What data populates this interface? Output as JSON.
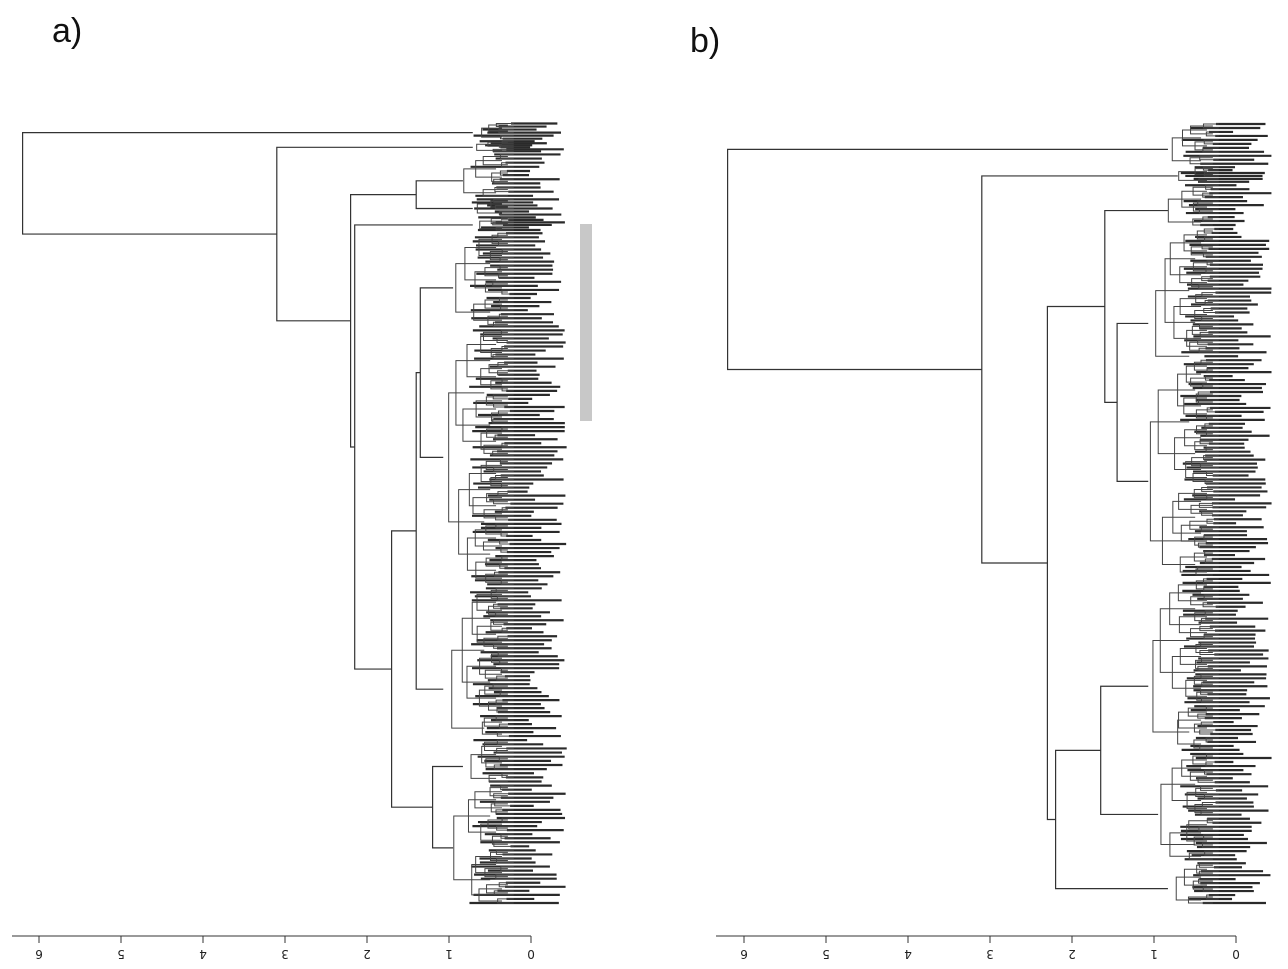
{
  "panels": [
    {
      "label": "a)",
      "axis": {
        "ticks": [
          0,
          1,
          2,
          3,
          4,
          5,
          6
        ],
        "tick_labels": [
          "0",
          "1",
          "2",
          "3",
          "4",
          "5",
          "6"
        ]
      },
      "root_height": 6.2,
      "highlight_bar_color": "#c8c8c8",
      "dendrogram": {
        "h": 6.2,
        "l": {
          "leaf": true,
          "w": 0.6
        },
        "r": {
          "h": 3.1,
          "l": {
            "leaf": true,
            "w": 0.4
          },
          "r": {
            "h": 2.2,
            "l": {
              "h": 1.4,
              "l": {
                "leaf": true,
                "w": 1.5
              },
              "r": {
                "leaf": true,
                "w": 0.6
              }
            },
            "r": {
              "h": 2.15,
              "l": {
                "leaf": true,
                "w": 0.5
              },
              "r": {
                "h": 1.7,
                "l": {
                  "h": 1.4,
                  "l": {
                    "h": 1.35,
                    "l": {
                      "leaf": true,
                      "w": 3.2
                    },
                    "r": {
                      "leaf": true,
                      "w": 8.5
                    }
                  },
                  "r": {
                    "leaf": true,
                    "w": 5.0
                  }
                },
                "r": {
                  "h": 1.2,
                  "l": {
                    "leaf": true,
                    "w": 1.5
                  },
                  "r": {
                    "leaf": true,
                    "w": 4.0
                  }
                }
              }
            }
          }
        }
      }
    },
    {
      "label": "b)",
      "axis": {
        "ticks": [
          0,
          1,
          2,
          3,
          4,
          5,
          6
        ],
        "tick_labels": [
          "0",
          "1",
          "2",
          "3",
          "4",
          "5",
          "6"
        ]
      },
      "root_height": 6.2,
      "dendrogram": {
        "h": 6.2,
        "l": {
          "leaf": true,
          "w": 1.0
        },
        "r": {
          "h": 3.1,
          "l": {
            "leaf": true,
            "w": 0.4
          },
          "r": {
            "h": 2.3,
            "l": {
              "h": 1.6,
              "l": {
                "leaf": true,
                "w": 1.0
              },
              "r": {
                "h": 1.45,
                "l": {
                  "leaf": true,
                  "w": 3.0
                },
                "r": {
                  "leaf": true,
                  "w": 5.0
                }
              }
            },
            "r": {
              "h": 2.2,
              "l": {
                "h": 1.65,
                "l": {
                  "leaf": true,
                  "w": 4.0
                },
                "r": {
                  "leaf": true,
                  "w": 2.5
                }
              },
              "r": {
                "leaf": true,
                "w": 1.0
              }
            }
          }
        }
      }
    }
  ]
}
